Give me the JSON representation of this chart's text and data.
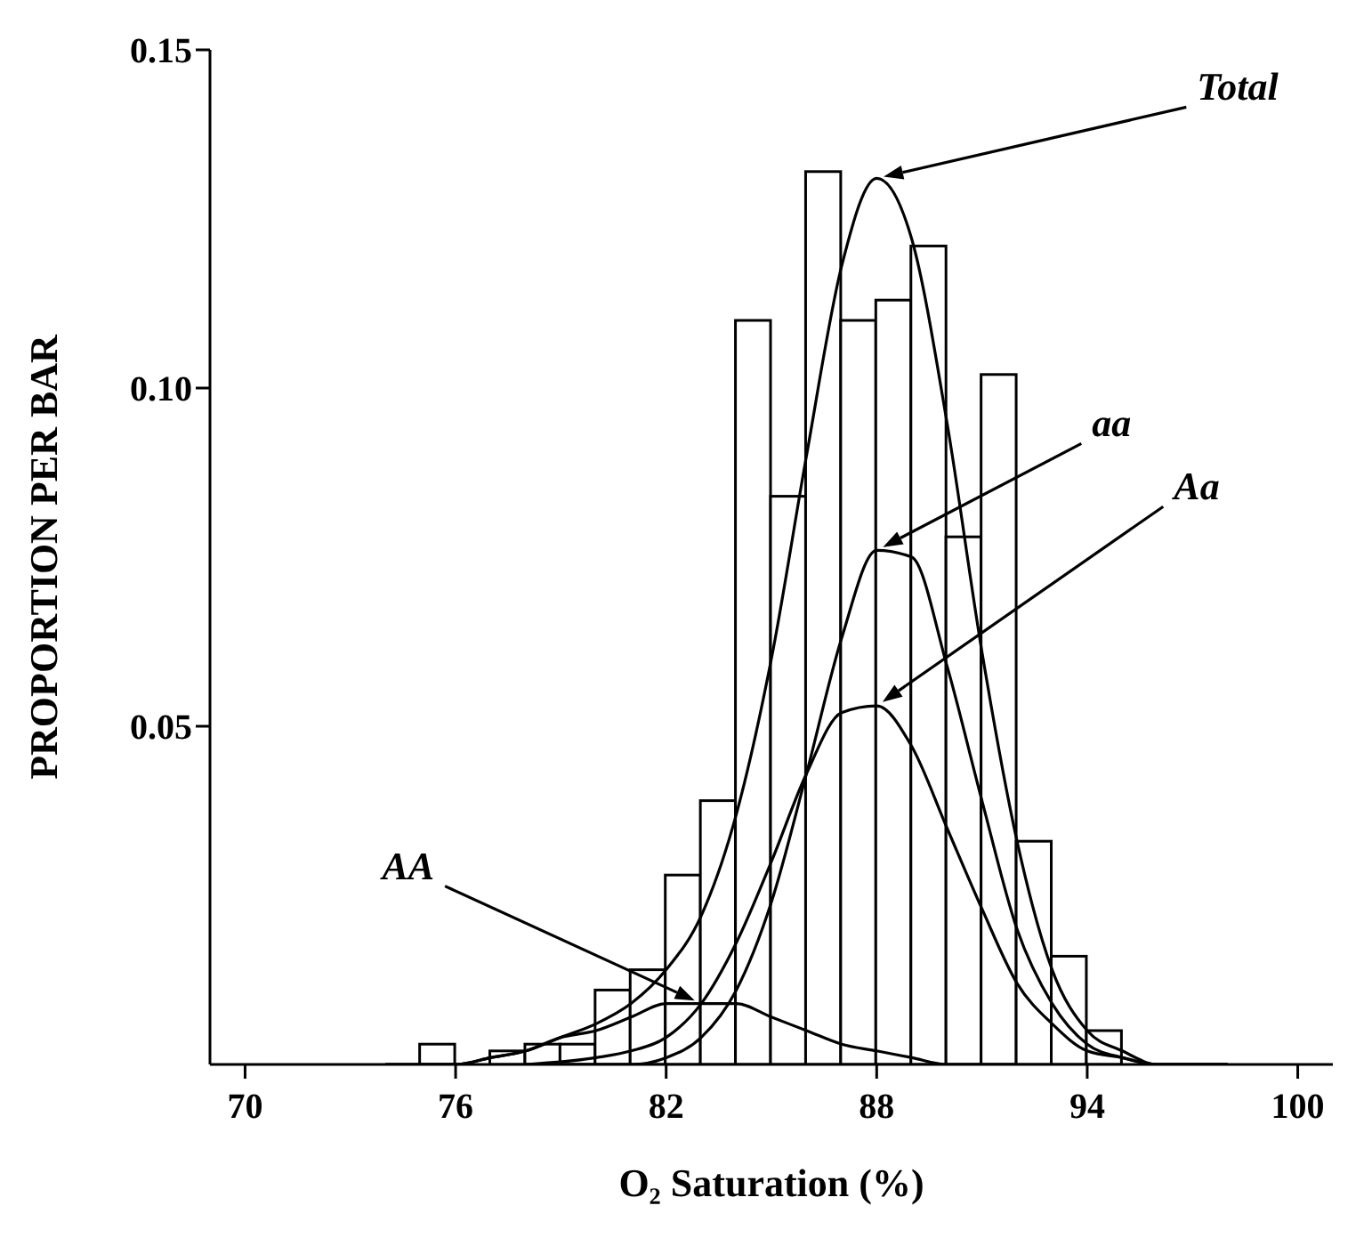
{
  "chart_data": {
    "type": "histogram",
    "xlabel": "O₂ Saturation (%)",
    "ylabel": "PROPORTION PER BAR",
    "color": "#000000",
    "bins": [
      75,
      76,
      77,
      78,
      79,
      80,
      81,
      82,
      83,
      84,
      85,
      86,
      87,
      88,
      89,
      90,
      91,
      92,
      93,
      94,
      95
    ],
    "values": [
      0.003,
      0,
      0.002,
      0.003,
      0.003,
      0.011,
      0.014,
      0.028,
      0.039,
      0.11,
      0.084,
      0.132,
      0.11,
      0.113,
      0.121,
      0.078,
      0.102,
      0.033,
      0.016,
      0.005
    ],
    "series": [
      {
        "name": "Total",
        "type": "line",
        "color": "#000000",
        "x": [
          74,
          76,
          77,
          78,
          79,
          80,
          81,
          82,
          83,
          84,
          85,
          86,
          87,
          88,
          89,
          90,
          91,
          92,
          93,
          94,
          95,
          96,
          98
        ],
        "values": [
          0.0,
          0.0,
          0.001,
          0.002,
          0.004,
          0.006,
          0.009,
          0.014,
          0.022,
          0.037,
          0.06,
          0.09,
          0.118,
          0.131,
          0.122,
          0.095,
          0.061,
          0.033,
          0.014,
          0.005,
          0.002,
          0.0,
          0.0
        ]
      },
      {
        "name": "aa",
        "type": "line",
        "color": "#000000",
        "x": [
          79,
          80,
          81,
          82,
          83,
          84,
          85,
          86,
          87,
          88,
          89,
          90,
          91,
          92,
          93,
          94,
          95,
          96,
          98
        ],
        "values": [
          0.0,
          0.0,
          0.0,
          0.001,
          0.004,
          0.011,
          0.024,
          0.043,
          0.063,
          0.076,
          0.075,
          0.059,
          0.039,
          0.02,
          0.009,
          0.003,
          0.001,
          0.0,
          0.0
        ]
      },
      {
        "name": "Aa",
        "type": "line",
        "color": "#000000",
        "x": [
          78,
          80,
          81,
          82,
          83,
          84,
          85,
          86,
          87,
          88,
          89,
          90,
          91,
          92,
          93,
          94,
          95,
          96,
          98
        ],
        "values": [
          0.0,
          0.001,
          0.002,
          0.004,
          0.009,
          0.018,
          0.03,
          0.043,
          0.052,
          0.053,
          0.047,
          0.035,
          0.023,
          0.012,
          0.006,
          0.002,
          0.001,
          0.0,
          0.0
        ]
      },
      {
        "name": "AA",
        "type": "line",
        "color": "#000000",
        "x": [
          74,
          76,
          77,
          78,
          79,
          80,
          81,
          82,
          83,
          84,
          85,
          86,
          87,
          88,
          89,
          90,
          92
        ],
        "values": [
          0.0,
          0.0,
          0.001,
          0.002,
          0.004,
          0.005,
          0.007,
          0.009,
          0.009,
          0.009,
          0.007,
          0.005,
          0.003,
          0.002,
          0.001,
          0.0,
          0.0
        ]
      }
    ],
    "xlim": [
      69,
      101
    ],
    "xticks": [
      70,
      76,
      82,
      88,
      94,
      100
    ],
    "ylim": [
      0,
      0.15
    ],
    "yticks": [
      {
        "value": 0.05,
        "label": "0.05"
      },
      {
        "value": 0.1,
        "label": "0.10"
      },
      {
        "value": 0.15,
        "label": "0.15"
      }
    ],
    "grid": false,
    "legend": false,
    "marker": "none",
    "line_style": "solid"
  }
}
